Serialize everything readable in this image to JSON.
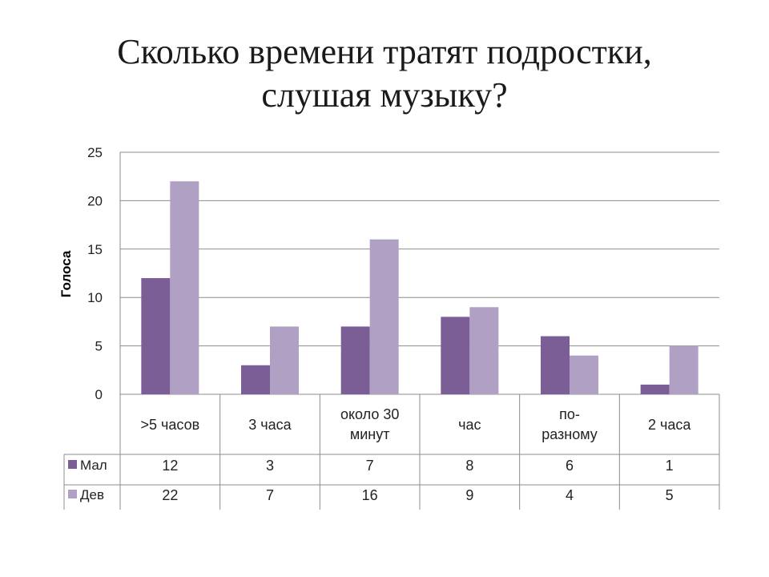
{
  "slide": {
    "title_line1": "Сколько времени тратят подростки,",
    "title_line2": "слушая музыку?"
  },
  "chart_data": {
    "type": "bar",
    "title": "Сколько времени тратят подростки, слушая музыку?",
    "ylabel": "Голоса",
    "xlabel": "",
    "ylim": [
      0,
      25
    ],
    "yticks": [
      0,
      5,
      10,
      15,
      20,
      25
    ],
    "grid": true,
    "legend": "data-table-left",
    "categories": [
      ">5 часов",
      "3 часа",
      "около 30 минут",
      "час",
      "по-разному",
      "2 часа"
    ],
    "category_label_lines": [
      [
        ">5 часов"
      ],
      [
        "3 часа"
      ],
      [
        "около 30",
        "минут"
      ],
      [
        "час"
      ],
      [
        "по-",
        "разному"
      ],
      [
        "2 часа"
      ]
    ],
    "series": [
      {
        "name": "Мал",
        "color": "#7b5e96",
        "values": [
          12,
          3,
          7,
          8,
          6,
          1
        ]
      },
      {
        "name": "Дев",
        "color": "#b0a0c4",
        "values": [
          22,
          7,
          16,
          9,
          4,
          5
        ]
      }
    ],
    "data_table": true
  }
}
